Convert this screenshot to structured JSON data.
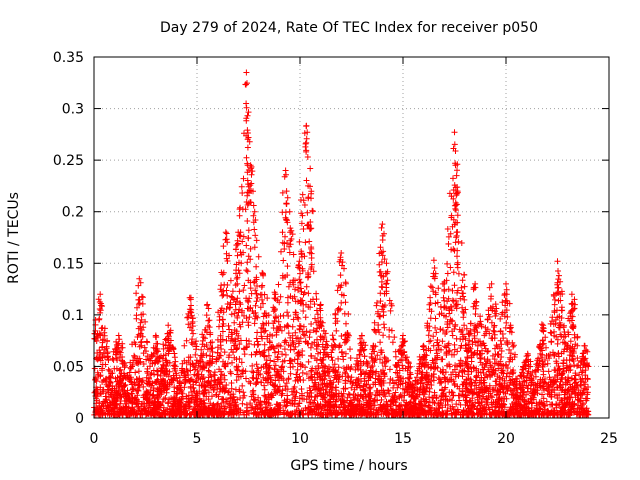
{
  "chart_data": {
    "type": "scatter",
    "title": "Day 279 of 2024, Rate Of TEC Index for receiver p050",
    "xlabel": "GPS time / hours",
    "ylabel": "ROTI / TECUs",
    "xlim": [
      0,
      25
    ],
    "ylim": [
      0,
      0.35
    ],
    "xticks": [
      "0",
      "5",
      "10",
      "15",
      "20",
      "25"
    ],
    "yticks": [
      "0",
      "0.05",
      "0.1",
      "0.15",
      "0.2",
      "0.25",
      "0.3",
      "0.35"
    ],
    "grid": true,
    "marker": "+",
    "color": "#ff0000",
    "series": [
      {
        "name": "ROTI",
        "peaks": [
          {
            "x": 0.3,
            "y": 0.12
          },
          {
            "x": 1.2,
            "y": 0.08
          },
          {
            "x": 2.2,
            "y": 0.135
          },
          {
            "x": 3.0,
            "y": 0.08
          },
          {
            "x": 3.6,
            "y": 0.09
          },
          {
            "x": 4.7,
            "y": 0.115
          },
          {
            "x": 5.5,
            "y": 0.11
          },
          {
            "x": 6.4,
            "y": 0.18
          },
          {
            "x": 7.0,
            "y": 0.18
          },
          {
            "x": 7.4,
            "y": 0.335
          },
          {
            "x": 7.45,
            "y": 0.293
          },
          {
            "x": 7.5,
            "y": 0.272
          },
          {
            "x": 7.6,
            "y": 0.245
          },
          {
            "x": 7.8,
            "y": 0.2
          },
          {
            "x": 8.2,
            "y": 0.14
          },
          {
            "x": 8.8,
            "y": 0.12
          },
          {
            "x": 9.3,
            "y": 0.24
          },
          {
            "x": 9.35,
            "y": 0.22
          },
          {
            "x": 9.5,
            "y": 0.2
          },
          {
            "x": 10.0,
            "y": 0.14
          },
          {
            "x": 10.3,
            "y": 0.283
          },
          {
            "x": 10.35,
            "y": 0.277
          },
          {
            "x": 10.4,
            "y": 0.213
          },
          {
            "x": 10.5,
            "y": 0.19
          },
          {
            "x": 11.0,
            "y": 0.11
          },
          {
            "x": 12.0,
            "y": 0.16
          },
          {
            "x": 13.0,
            "y": 0.08
          },
          {
            "x": 14.0,
            "y": 0.188
          },
          {
            "x": 14.2,
            "y": 0.15
          },
          {
            "x": 15.0,
            "y": 0.08
          },
          {
            "x": 16.0,
            "y": 0.07
          },
          {
            "x": 16.5,
            "y": 0.153
          },
          {
            "x": 17.0,
            "y": 0.13
          },
          {
            "x": 17.5,
            "y": 0.277
          },
          {
            "x": 17.55,
            "y": 0.245
          },
          {
            "x": 17.6,
            "y": 0.235
          },
          {
            "x": 17.65,
            "y": 0.22
          },
          {
            "x": 17.6,
            "y": 0.18
          },
          {
            "x": 18.5,
            "y": 0.13
          },
          {
            "x": 19.3,
            "y": 0.13
          },
          {
            "x": 20.0,
            "y": 0.13
          },
          {
            "x": 21.0,
            "y": 0.06
          },
          {
            "x": 21.8,
            "y": 0.09
          },
          {
            "x": 22.5,
            "y": 0.152
          },
          {
            "x": 23.2,
            "y": 0.12
          },
          {
            "x": 23.8,
            "y": 0.07
          }
        ],
        "baseline_range": [
          0.0,
          0.05
        ],
        "x_range": [
          0.0,
          24.0
        ]
      }
    ]
  }
}
